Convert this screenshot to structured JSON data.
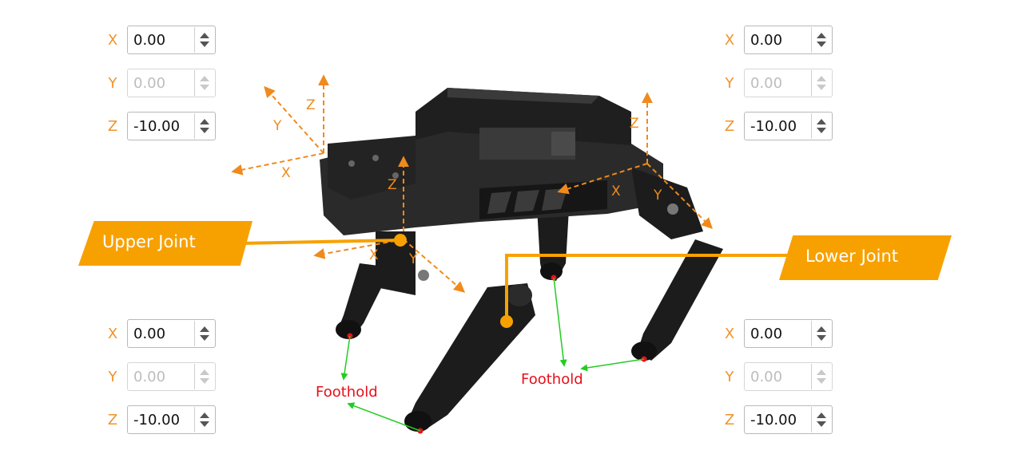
{
  "legs": {
    "front_left": {
      "x": {
        "axis": "X",
        "value": "0.00"
      },
      "y": {
        "axis": "Y",
        "value": "0.00"
      },
      "z": {
        "axis": "Z",
        "value": "-10.00"
      }
    },
    "front_right": {
      "x": {
        "axis": "X",
        "value": "0.00"
      },
      "y": {
        "axis": "Y",
        "value": "0.00"
      },
      "z": {
        "axis": "Z",
        "value": "-10.00"
      }
    },
    "rear_left": {
      "x": {
        "axis": "X",
        "value": "0.00"
      },
      "y": {
        "axis": "Y",
        "value": "0.00"
      },
      "z": {
        "axis": "Z",
        "value": "-10.00"
      }
    },
    "rear_right": {
      "x": {
        "axis": "X",
        "value": "0.00"
      },
      "y": {
        "axis": "Y",
        "value": "0.00"
      },
      "z": {
        "axis": "Z",
        "value": "-10.00"
      }
    }
  },
  "labels": {
    "upper_joint": "Upper Joint",
    "lower_joint": "Lower Joint",
    "foothold": "Foothold"
  },
  "axis_labels": {
    "x": "X",
    "y": "Y",
    "z": "Z"
  },
  "colors": {
    "accent": "#f7a100",
    "axis_text": "#f0932b",
    "foothold_text": "#e8101a",
    "pointer": "#22cc22",
    "robot": "#1c1c1c"
  }
}
